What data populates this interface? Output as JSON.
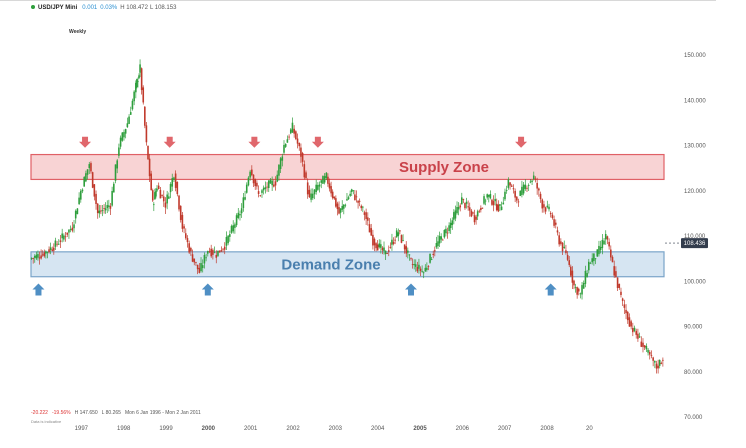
{
  "header": {
    "symbol": "USD/JPY Mini",
    "change": "0.001",
    "change_pct": "0.03%",
    "high": "H 108.472",
    "low": "L 108.153",
    "timeframe": "Weekly"
  },
  "footer": {
    "change": "-20.222",
    "change_pct": "-19.56%",
    "high": "H 147.650",
    "low": "L 80.265",
    "range": "Mon 6 Jan 1996 - Mon 2 Jan 2011",
    "note": "Data is indicative"
  },
  "colors": {
    "up": "#2e9e3c",
    "down": "#c0392b",
    "supply_fill": "#f8d3d4",
    "supply_border": "#e06066",
    "supply_text": "#c9424a",
    "demand_fill": "#d6e5f2",
    "demand_border": "#7aa4c9",
    "demand_text": "#4a7fae",
    "arrow_down": "#e0676c",
    "arrow_up": "#4f8fc4",
    "last_price_bg": "#333d4d"
  },
  "chart_data": {
    "type": "line",
    "x_axis": {
      "labels": [
        "1997",
        "1998",
        "1999",
        "2000",
        "2001",
        "2002",
        "2003",
        "2004",
        "2005",
        "2006",
        "2007",
        "2008",
        "20"
      ],
      "bold_labels": [
        "2000",
        "2005"
      ]
    },
    "y_axis": {
      "min": 70,
      "max": 150,
      "ticks": [
        "150.000",
        "140.000",
        "130.000",
        "120.000",
        "110.000",
        "100.000",
        "90.000",
        "80.000",
        "70.000"
      ]
    },
    "last_price": "108.436",
    "series": [
      {
        "x": [
          1996.0,
          1996.3,
          1996.6,
          1997.0,
          1997.2,
          1997.4,
          1997.6,
          1997.9,
          1998.1,
          1998.3,
          1998.5,
          1998.6,
          1998.75,
          1998.9,
          1999.0,
          1999.2,
          1999.4,
          1999.6,
          1999.8,
          2000.0,
          2000.2,
          2000.4,
          2000.6,
          2000.8,
          2001.0,
          2001.2,
          2001.4,
          2001.6,
          2001.8,
          2002.0,
          2002.2,
          2002.4,
          2002.6,
          2002.8,
          2003.0,
          2003.3,
          2003.6,
          2003.9,
          2004.1,
          2004.4,
          2004.7,
          2005.0,
          2005.3,
          2005.6,
          2005.9,
          2006.2,
          2006.5,
          2006.8,
          2007.1,
          2007.3,
          2007.5,
          2007.7,
          2007.9,
          2008.1,
          2008.3,
          2008.5,
          2008.7,
          2008.85,
          2009.0,
          2009.2,
          2009.4,
          2009.6,
          2009.8,
          2010.0,
          2010.2,
          2010.4,
          2010.6,
          2010.8,
          2010.95
        ],
        "y": [
          105,
          106,
          108,
          112,
          120,
          126,
          115,
          117,
          130,
          135,
          143,
          147,
          130,
          117,
          121,
          117,
          124,
          112,
          106,
          102,
          107,
          106,
          108,
          112,
          116,
          125,
          119,
          121,
          122,
          130,
          134,
          128,
          118,
          121,
          123,
          115,
          120,
          115,
          109,
          106,
          111,
          104,
          102,
          108,
          112,
          118,
          114,
          119,
          116,
          122,
          118,
          121,
          123,
          117,
          115,
          109,
          105,
          99,
          97,
          104,
          106,
          110,
          102,
          95,
          90,
          87,
          84,
          81,
          83
        ]
      }
    ],
    "zones": [
      {
        "name": "Supply Zone",
        "y_low": 122.5,
        "y_high": 128.0
      },
      {
        "name": "Demand Zone",
        "y_low": 101.0,
        "y_high": 106.5
      }
    ],
    "down_arrows_x": [
      1997.3,
      1999.3,
      2001.3,
      2002.8,
      2007.6
    ],
    "up_arrows_x": [
      1996.2,
      2000.2,
      2005.0,
      2008.3
    ]
  }
}
